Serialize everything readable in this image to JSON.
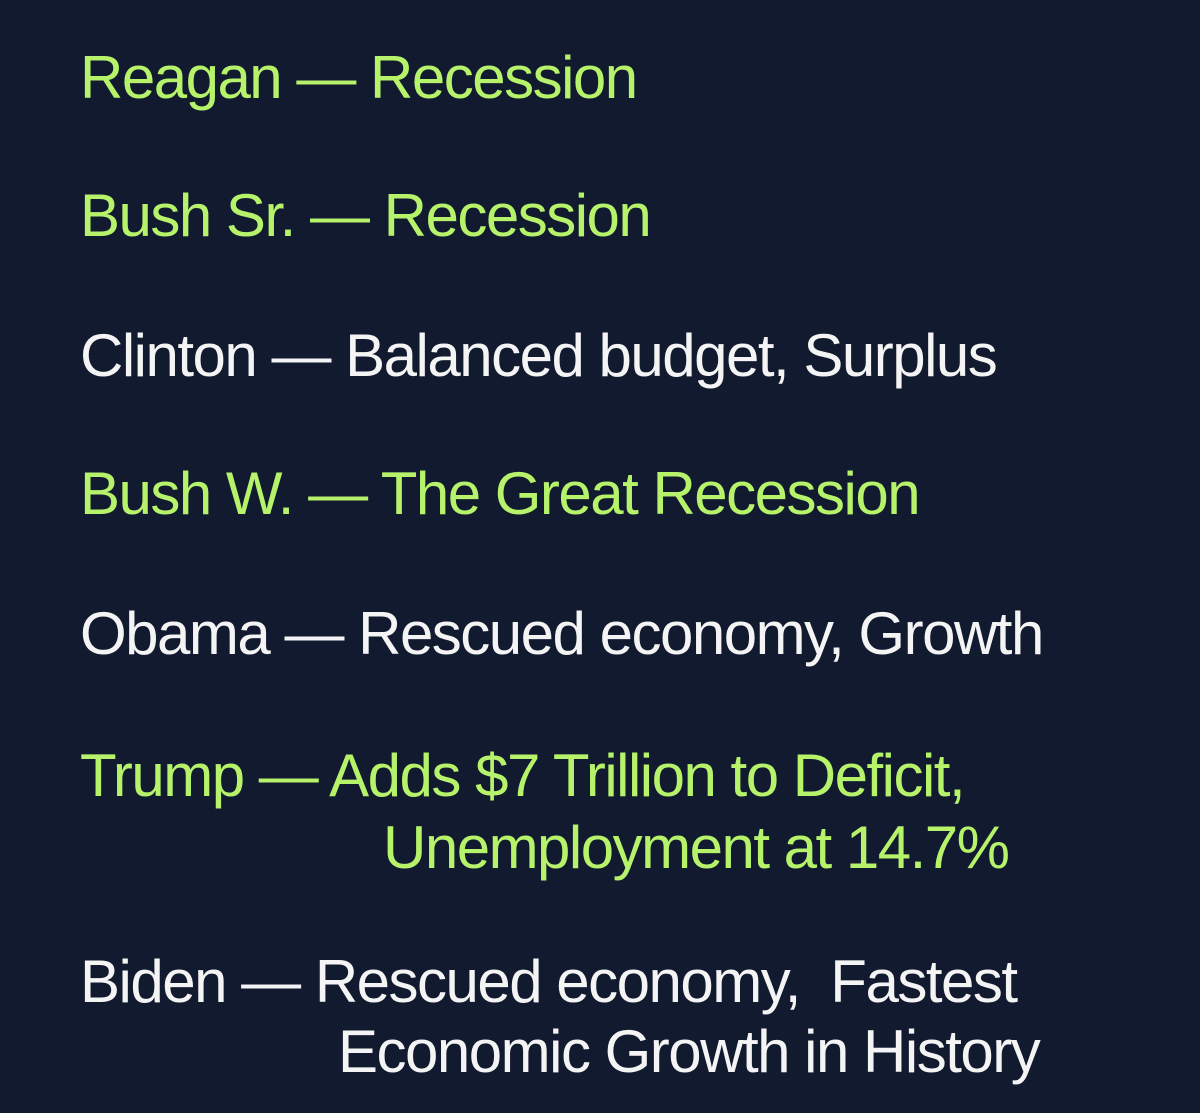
{
  "colors": {
    "background": "#121a30",
    "highlight": "#b6f36b",
    "normal": "#f4f4f4"
  },
  "entries": [
    {
      "president": "Reagan",
      "dash": "—",
      "outcome": "Recession"
    },
    {
      "president": "Bush Sr.",
      "dash": "—",
      "outcome": "Recession"
    },
    {
      "president": "Clinton",
      "dash": "—",
      "outcome": "Balanced budget, Surplus"
    },
    {
      "president": "Bush W.",
      "dash": "—",
      "outcome": "The Great Recession"
    },
    {
      "president": "Obama",
      "dash": "—",
      "outcome": "Rescued economy, Growth"
    },
    {
      "president": "Trump",
      "dash": "—",
      "outcome": "Adds $7 Trillion to Deficit,",
      "outcome_line2": "Unemployment at 14.7%"
    },
    {
      "president": "Biden",
      "dash": "—",
      "outcome": "Rescued economy,  Fastest",
      "outcome_line2": "Economic Growth in History"
    }
  ]
}
